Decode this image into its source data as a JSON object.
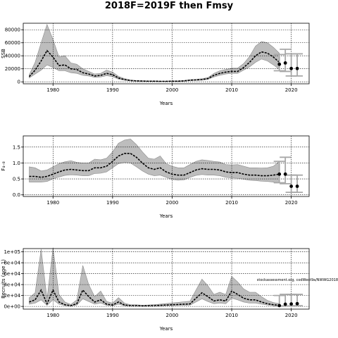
{
  "title": "2018F=2019F then Fmsy",
  "watermark": "stockassessment.org, codWest9a/NWWG2018",
  "chart_data": [
    {
      "type": "line",
      "ylabel": "SSB",
      "xlabel": "Years",
      "xlim": [
        1975,
        2023
      ],
      "ylim": [
        -3000,
        90000
      ],
      "xticks": [
        1980,
        1990,
        2000,
        2010,
        2020
      ],
      "yticks": [
        0,
        20000,
        40000,
        60000,
        80000
      ],
      "ytick_labels": [
        "0",
        "20000",
        "40000",
        "60000",
        "80000"
      ],
      "grid": true,
      "x": [
        1976,
        1977,
        1978,
        1979,
        1980,
        1981,
        1982,
        1983,
        1984,
        1985,
        1986,
        1987,
        1988,
        1989,
        1990,
        1991,
        1992,
        1993,
        1994,
        1995,
        1996,
        1997,
        1998,
        1999,
        2000,
        2001,
        2002,
        2003,
        2004,
        2005,
        2006,
        2007,
        2008,
        2009,
        2010,
        2011,
        2012,
        2013,
        2014,
        2015,
        2016,
        2017,
        2018
      ],
      "estimate": [
        8000,
        18000,
        32000,
        48000,
        38000,
        25000,
        26000,
        20000,
        19000,
        14000,
        12000,
        9000,
        10000,
        13000,
        11000,
        6000,
        3500,
        2000,
        1500,
        1200,
        1000,
        1000,
        800,
        800,
        1000,
        1000,
        1500,
        2500,
        3000,
        3500,
        5000,
        10000,
        13000,
        15000,
        16000,
        16000,
        22000,
        30000,
        40000,
        46000,
        44000,
        38000,
        30000
      ],
      "lower": [
        6000,
        12000,
        18000,
        26000,
        22000,
        17000,
        17000,
        14000,
        13000,
        10000,
        9000,
        7000,
        7500,
        9500,
        8000,
        4000,
        2500,
        1500,
        1000,
        800,
        700,
        700,
        600,
        600,
        700,
        700,
        1000,
        1800,
        2200,
        2600,
        3800,
        7500,
        10000,
        12000,
        13000,
        13000,
        18000,
        23000,
        30000,
        35000,
        32000,
        26000,
        19000
      ],
      "upper": [
        11000,
        30000,
        60000,
        88000,
        65000,
        38000,
        40000,
        29000,
        27000,
        20000,
        16000,
        12000,
        13000,
        18000,
        15000,
        8500,
        5000,
        3000,
        2000,
        1700,
        1400,
        1400,
        1100,
        1100,
        1400,
        1400,
        2000,
        3500,
        4000,
        4800,
        6500,
        13000,
        17000,
        19000,
        21000,
        21000,
        28000,
        39000,
        55000,
        62000,
        60000,
        53000,
        44000
      ],
      "forecast_x": [
        2018,
        2019,
        2020,
        2021
      ],
      "forecast_median": [
        27000,
        29000,
        20500,
        20500
      ],
      "forecast_lower": [
        17000,
        16000,
        9000,
        9000
      ],
      "forecast_upper": [
        42000,
        50000,
        43000,
        43000
      ]
    },
    {
      "type": "line",
      "ylabel": "F₄₋₈",
      "xlabel": "Years",
      "xlim": [
        1975,
        2023
      ],
      "ylim": [
        -0.05,
        1.85
      ],
      "xticks": [
        1980,
        1990,
        2000,
        2010,
        2020
      ],
      "yticks": [
        0,
        0.5,
        1.0,
        1.5
      ],
      "ytick_labels": [
        "0.0",
        "0.5",
        "1.0",
        "1.5"
      ],
      "grid": true,
      "x": [
        1976,
        1977,
        1978,
        1979,
        1980,
        1981,
        1982,
        1983,
        1984,
        1985,
        1986,
        1987,
        1988,
        1989,
        1990,
        1991,
        1992,
        1993,
        1994,
        1995,
        1996,
        1997,
        1998,
        1999,
        2000,
        2001,
        2002,
        2003,
        2004,
        2005,
        2006,
        2007,
        2008,
        2009,
        2010,
        2011,
        2012,
        2013,
        2014,
        2015,
        2016,
        2017,
        2018
      ],
      "estimate": [
        0.58,
        0.58,
        0.55,
        0.58,
        0.65,
        0.72,
        0.78,
        0.8,
        0.78,
        0.76,
        0.76,
        0.85,
        0.85,
        0.9,
        1.05,
        1.22,
        1.3,
        1.3,
        1.18,
        1.0,
        0.85,
        0.8,
        0.85,
        0.72,
        0.65,
        0.62,
        0.62,
        0.7,
        0.78,
        0.82,
        0.8,
        0.8,
        0.78,
        0.72,
        0.7,
        0.7,
        0.65,
        0.62,
        0.62,
        0.6,
        0.6,
        0.62,
        0.65
      ],
      "lower": [
        0.4,
        0.4,
        0.4,
        0.42,
        0.5,
        0.56,
        0.61,
        0.63,
        0.62,
        0.6,
        0.6,
        0.67,
        0.68,
        0.72,
        0.85,
        0.98,
        1.02,
        1.0,
        0.88,
        0.75,
        0.65,
        0.6,
        0.62,
        0.55,
        0.48,
        0.46,
        0.47,
        0.55,
        0.61,
        0.64,
        0.62,
        0.62,
        0.6,
        0.55,
        0.53,
        0.52,
        0.49,
        0.46,
        0.45,
        0.43,
        0.42,
        0.4,
        0.38
      ],
      "upper": [
        0.88,
        0.85,
        0.75,
        0.78,
        0.88,
        0.98,
        1.04,
        1.07,
        1.02,
        1.0,
        1.0,
        1.12,
        1.1,
        1.15,
        1.35,
        1.62,
        1.72,
        1.75,
        1.58,
        1.35,
        1.15,
        1.12,
        1.22,
        0.98,
        0.9,
        0.85,
        0.85,
        0.95,
        1.05,
        1.1,
        1.08,
        1.05,
        1.03,
        0.95,
        0.94,
        0.95,
        0.9,
        0.85,
        0.85,
        0.84,
        0.85,
        0.9,
        1.05
      ],
      "forecast_x": [
        2018,
        2019,
        2020,
        2021
      ],
      "forecast_median": [
        0.65,
        0.65,
        0.27,
        0.27
      ],
      "forecast_lower": [
        0.38,
        0.35,
        0.08,
        0.08
      ],
      "forecast_upper": [
        1.05,
        1.18,
        0.62,
        0.62
      ]
    },
    {
      "type": "line",
      "ylabel": "Recruits (age 1)",
      "xlabel": "Years",
      "xlim": [
        1975,
        2023
      ],
      "ylim": [
        -5000,
        106000
      ],
      "xticks": [
        1980,
        1990,
        2000,
        2010,
        2020
      ],
      "yticks": [
        0,
        20000,
        40000,
        60000,
        80000,
        100000
      ],
      "ytick_labels": [
        "0e+00",
        "2e+04",
        "4e+04",
        "6e+04",
        "8e+04",
        "1e+05"
      ],
      "grid": true,
      "x": [
        1976,
        1977,
        1978,
        1979,
        1980,
        1981,
        1982,
        1983,
        1984,
        1985,
        1986,
        1987,
        1988,
        1989,
        1990,
        1991,
        1992,
        1993,
        1994,
        1995,
        1996,
        1997,
        1998,
        1999,
        2000,
        2001,
        2002,
        2003,
        2004,
        2005,
        2006,
        2007,
        2008,
        2009,
        2010,
        2011,
        2012,
        2013,
        2014,
        2015,
        2016,
        2017,
        2018
      ],
      "estimate": [
        8000,
        12000,
        30000,
        5000,
        30000,
        8000,
        3000,
        1500,
        5000,
        30000,
        18000,
        8000,
        12000,
        4000,
        2500,
        8000,
        2500,
        1500,
        1500,
        1000,
        1200,
        1500,
        2000,
        2500,
        3000,
        3500,
        4000,
        4500,
        15000,
        25000,
        18000,
        10000,
        12000,
        10000,
        28000,
        22000,
        15000,
        12000,
        12000,
        8000,
        5000,
        3000,
        2000
      ],
      "lower": [
        4000,
        6000,
        12000,
        2000,
        12000,
        4000,
        1500,
        700,
        2500,
        14000,
        9000,
        4000,
        6000,
        2000,
        1200,
        4000,
        1200,
        800,
        800,
        500,
        600,
        800,
        1000,
        1300,
        1500,
        1800,
        2000,
        2300,
        8000,
        14000,
        9000,
        5000,
        6000,
        5000,
        15000,
        12000,
        8000,
        6000,
        6000,
        4000,
        2500,
        1400,
        800
      ],
      "upper": [
        16000,
        25000,
        105000,
        14000,
        108000,
        22000,
        8000,
        3500,
        12000,
        75000,
        40000,
        18000,
        28000,
        9000,
        6000,
        16000,
        6000,
        3000,
        3000,
        2200,
        2600,
        3200,
        4200,
        5200,
        6400,
        7400,
        8500,
        9500,
        30000,
        50000,
        38000,
        22000,
        26000,
        22000,
        55000,
        45000,
        32000,
        26000,
        26000,
        18000,
        11000,
        7000,
        5000
      ],
      "forecast_x": [
        2018,
        2019,
        2020,
        2021
      ],
      "forecast_median": [
        1500,
        4000,
        4500,
        5000
      ],
      "forecast_lower": [
        500,
        1000,
        1000,
        1200
      ],
      "forecast_upper": [
        20000,
        22000,
        22000,
        22000
      ]
    }
  ]
}
